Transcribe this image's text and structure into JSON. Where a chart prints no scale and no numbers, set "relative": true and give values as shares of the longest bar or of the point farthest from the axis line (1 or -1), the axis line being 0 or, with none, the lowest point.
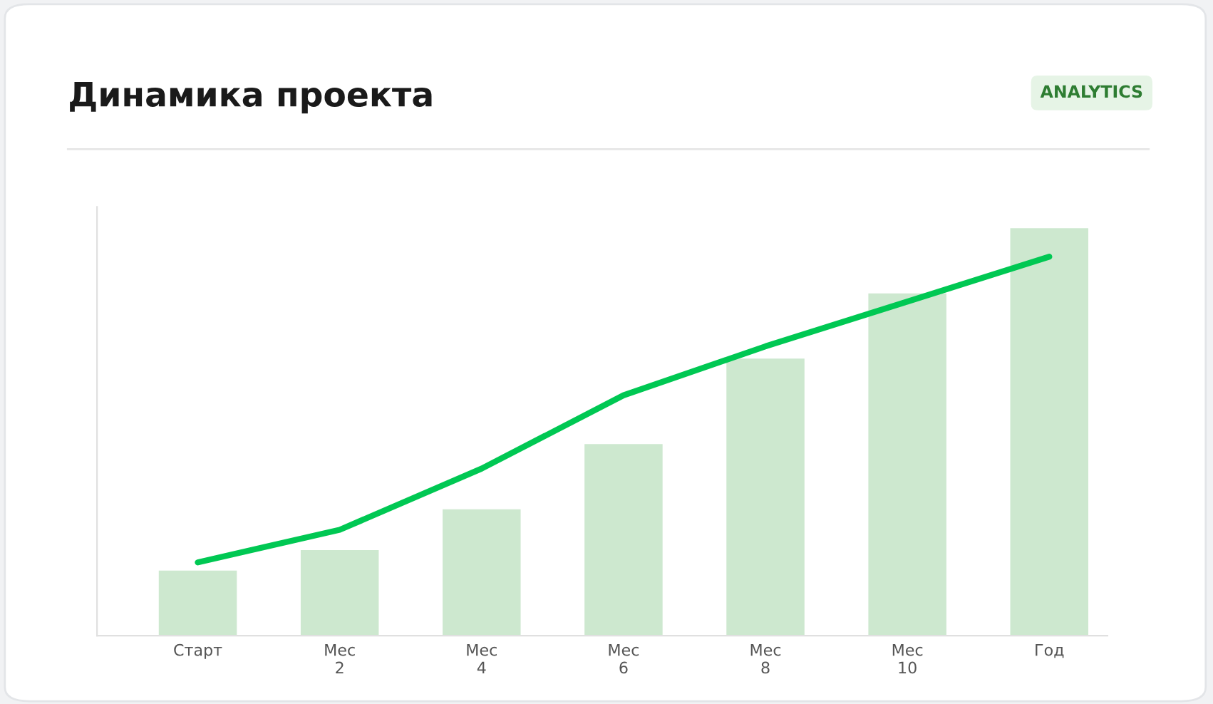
{
  "chart_data": {
    "type": "bar",
    "title": "Динамика проекта",
    "annotations": [
      "ANALYTICS"
    ],
    "relative": true,
    "categories": [
      "Старт",
      "Мес 2",
      "Мес 4",
      "Мес 6",
      "Мес 8",
      "Мес 10",
      "Год"
    ],
    "series": [
      {
        "color": "#cde8cf",
        "values": [
          0.16,
          0.21,
          0.31,
          0.47,
          0.68,
          0.84,
          1.0
        ]
      },
      {
        "type": "line",
        "color": "#00c853",
        "values": [
          0.18,
          0.26,
          0.41,
          0.59,
          0.71,
          0.82,
          0.93
        ]
      }
    ],
    "grid": false,
    "legend": false
  }
}
